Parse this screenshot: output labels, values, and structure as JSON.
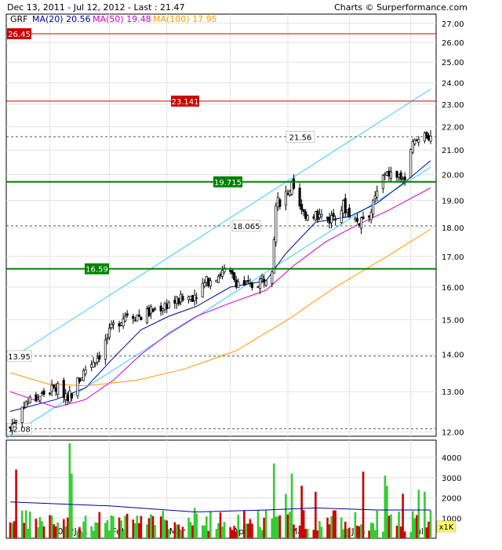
{
  "header": {
    "date_range": "Dec 13, 2011 - Jul 12, 2012 - Last : 21.47",
    "credit": "Charts © Surperformance.com"
  },
  "legend": {
    "symbol": "GRF",
    "ma20": "MA(20) 20.56",
    "ma50": "MA(50) 19.48",
    "ma100": "MA(100) 17.95"
  },
  "volume_unit": "x1K",
  "colors": {
    "up": "#33cc33",
    "down": "#cc0000",
    "ma20": "#000099",
    "ma50": "#cc00cc",
    "ma100": "#ff9900",
    "channel": "#33ccff",
    "resistance": "#cc0000",
    "support": "#008000",
    "volume_avg": "#000099"
  },
  "chart_data": [
    {
      "type": "candlestick",
      "title": "",
      "y_scale": "log",
      "ylim": [
        11.9,
        27.5
      ],
      "y_ticks": [
        "12.00",
        "13.00",
        "14.00",
        "15.00",
        "16.00",
        "17.00",
        "18.00",
        "19.00",
        "20.00",
        "21.00",
        "22.00",
        "23.00",
        "24.00",
        "25.00",
        "26.00",
        "27.00"
      ],
      "x_labels": [
        "2012Jan",
        "Feb",
        "Mar",
        "Apr",
        "May",
        "Jun",
        "Jul"
      ],
      "x_label_dates": [
        "2012-01-02",
        "2012-02-01",
        "2012-03-01",
        "2012-04-02",
        "2012-05-01",
        "2012-06-01",
        "2012-07-02"
      ],
      "x_range": [
        "2011-12-13",
        "2012-07-12"
      ],
      "grid": true,
      "levels": [
        {
          "value": 26.45,
          "label": "26.45",
          "kind": "resistance"
        },
        {
          "value": 23.141,
          "label": "23.141",
          "kind": "resistance"
        },
        {
          "value": 19.715,
          "label": "19.715",
          "kind": "support"
        },
        {
          "value": 16.59,
          "label": "16.59",
          "kind": "support"
        }
      ],
      "reference_lines": [
        {
          "value": 21.56,
          "label": "21.56"
        },
        {
          "value": 18.065,
          "label": "18.065"
        },
        {
          "value": 13.95,
          "label": "13.95"
        },
        {
          "value": 12.08,
          "label": "12.08"
        }
      ],
      "channel": {
        "upper": [
          [
            "2011-12-13",
            13.8
          ],
          [
            "2012-07-12",
            23.7
          ]
        ],
        "lower": [
          [
            "2011-12-13",
            11.85
          ],
          [
            "2012-07-12",
            20.3
          ]
        ]
      },
      "price_anchors": [
        [
          "2011-12-13",
          12.1
        ],
        [
          "2011-12-20",
          12.7
        ],
        [
          "2011-12-28",
          12.9
        ],
        [
          "2012-01-05",
          13.1
        ],
        [
          "2012-01-12",
          12.9
        ],
        [
          "2012-01-20",
          13.6
        ],
        [
          "2012-01-27",
          14.0
        ],
        [
          "2012-02-03",
          14.8
        ],
        [
          "2012-02-10",
          15.2
        ],
        [
          "2012-02-17",
          15.1
        ],
        [
          "2012-02-24",
          15.3
        ],
        [
          "2012-03-02",
          15.5
        ],
        [
          "2012-03-09",
          15.6
        ],
        [
          "2012-03-16",
          15.8
        ],
        [
          "2012-03-23",
          16.3
        ],
        [
          "2012-03-30",
          16.5
        ],
        [
          "2012-04-05",
          16.2
        ],
        [
          "2012-04-12",
          16.0
        ],
        [
          "2012-04-19",
          16.3
        ],
        [
          "2012-04-23",
          16.7
        ],
        [
          "2012-04-25",
          18.8
        ],
        [
          "2012-04-30",
          19.3
        ],
        [
          "2012-05-03",
          19.5
        ],
        [
          "2012-05-08",
          18.5
        ],
        [
          "2012-05-15",
          18.5
        ],
        [
          "2012-05-22",
          18.3
        ],
        [
          "2012-05-29",
          18.8
        ],
        [
          "2012-06-05",
          18.2
        ],
        [
          "2012-06-12",
          18.6
        ],
        [
          "2012-06-19",
          20.1
        ],
        [
          "2012-06-26",
          19.9
        ],
        [
          "2012-06-29",
          19.8
        ],
        [
          "2012-07-03",
          21.2
        ],
        [
          "2012-07-09",
          21.7
        ],
        [
          "2012-07-12",
          21.47
        ]
      ],
      "series": [
        {
          "name": "MA(20) 20.56",
          "values": [
            [
              "2011-12-13",
              12.5
            ],
            [
              "2012-01-05",
              12.8
            ],
            [
              "2012-01-20",
              13.1
            ],
            [
              "2012-02-03",
              13.9
            ],
            [
              "2012-02-17",
              14.7
            ],
            [
              "2012-03-02",
              15.1
            ],
            [
              "2012-03-16",
              15.4
            ],
            [
              "2012-04-02",
              16.0
            ],
            [
              "2012-04-20",
              16.2
            ],
            [
              "2012-04-30",
              17.1
            ],
            [
              "2012-05-15",
              18.2
            ],
            [
              "2012-06-01",
              18.4
            ],
            [
              "2012-06-15",
              18.9
            ],
            [
              "2012-06-29",
              19.7
            ],
            [
              "2012-07-12",
              20.56
            ]
          ]
        },
        {
          "name": "MA(50) 19.48",
          "values": [
            [
              "2011-12-13",
              13.0
            ],
            [
              "2012-01-05",
              12.6
            ],
            [
              "2012-01-20",
              12.8
            ],
            [
              "2012-02-03",
              13.3
            ],
            [
              "2012-02-17",
              14.0
            ],
            [
              "2012-03-02",
              14.6
            ],
            [
              "2012-03-16",
              15.1
            ],
            [
              "2012-04-02",
              15.5
            ],
            [
              "2012-04-20",
              15.9
            ],
            [
              "2012-05-04",
              16.7
            ],
            [
              "2012-05-20",
              17.5
            ],
            [
              "2012-06-05",
              18.1
            ],
            [
              "2012-06-20",
              18.6
            ],
            [
              "2012-07-12",
              19.48
            ]
          ]
        },
        {
          "name": "MA(100) 17.95",
          "values": [
            [
              "2011-12-13",
              13.5
            ],
            [
              "2012-01-01",
              13.2
            ],
            [
              "2012-01-20",
              13.15
            ],
            [
              "2012-02-15",
              13.3
            ],
            [
              "2012-03-10",
              13.6
            ],
            [
              "2012-04-05",
              14.1
            ],
            [
              "2012-05-01",
              15.0
            ],
            [
              "2012-05-25",
              16.0
            ],
            [
              "2012-06-20",
              17.0
            ],
            [
              "2012-07-12",
              17.95
            ]
          ]
        }
      ]
    },
    {
      "type": "bar",
      "title": "",
      "ylabel": "x1K",
      "ylim": [
        0,
        4700
      ],
      "y_ticks": [
        "1000",
        "2000",
        "3000",
        "4000"
      ],
      "volume_avg": [
        [
          "2011-12-13",
          1800
        ],
        [
          "2012-02-01",
          1600
        ],
        [
          "2012-03-15",
          1300
        ],
        [
          "2012-04-20",
          1400
        ],
        [
          "2012-05-15",
          1500
        ],
        [
          "2012-06-15",
          1400
        ],
        [
          "2012-07-12",
          1400
        ]
      ],
      "spikes": [
        {
          "date": "2011-12-16",
          "value": 3400,
          "dir": "down"
        },
        {
          "date": "2012-01-12",
          "value": 4700,
          "dir": "up"
        },
        {
          "date": "2012-01-13",
          "value": 3200,
          "dir": "up"
        },
        {
          "date": "2012-03-15",
          "value": 1500,
          "dir": "up"
        },
        {
          "date": "2012-04-24",
          "value": 3700,
          "dir": "up"
        },
        {
          "date": "2012-04-30",
          "value": 2200,
          "dir": "up"
        },
        {
          "date": "2012-05-03",
          "value": 3200,
          "dir": "up"
        },
        {
          "date": "2012-05-08",
          "value": 2600,
          "dir": "down"
        },
        {
          "date": "2012-05-15",
          "value": 2300,
          "dir": "down"
        },
        {
          "date": "2012-06-08",
          "value": 3300,
          "dir": "down"
        },
        {
          "date": "2012-06-19",
          "value": 3100,
          "dir": "up"
        },
        {
          "date": "2012-06-20",
          "value": 2600,
          "dir": "up"
        },
        {
          "date": "2012-06-28",
          "value": 2200,
          "dir": "down"
        },
        {
          "date": "2012-07-06",
          "value": 2400,
          "dir": "up"
        },
        {
          "date": "2012-07-09",
          "value": 2300,
          "dir": "up"
        }
      ]
    }
  ]
}
